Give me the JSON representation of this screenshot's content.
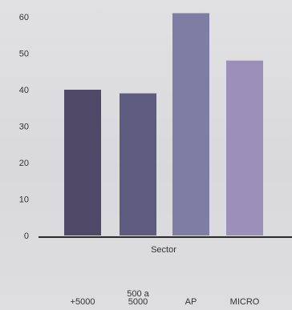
{
  "chart_data": {
    "type": "bar",
    "categories": [
      "+5000",
      "500 a 5000",
      "AP",
      "MICRO"
    ],
    "category_lines": [
      [
        "+5000"
      ],
      [
        "500 a",
        "5000"
      ],
      [
        "AP"
      ],
      [
        "MICRO"
      ]
    ],
    "values": [
      40,
      39,
      61,
      48
    ],
    "colors": [
      "#504a68",
      "#5e5b7f",
      "#7e7da3",
      "#9c8fba"
    ],
    "xlabel": "Sector",
    "ylabel": "",
    "ylim": [
      0,
      60
    ],
    "yticks": [
      "0",
      "10",
      "20",
      "30",
      "40",
      "50",
      "60"
    ],
    "grid": false,
    "legend": "none"
  }
}
